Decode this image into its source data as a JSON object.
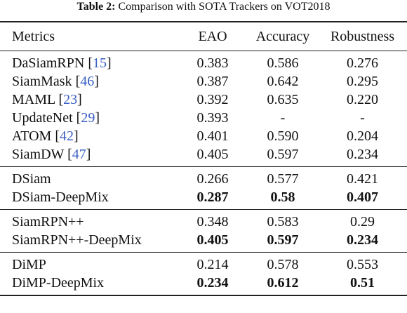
{
  "caption": {
    "label": "Table 2:",
    "text": " Comparison with SOTA Trackers on VOT2018"
  },
  "headers": [
    "Metrics",
    "EAO",
    "Accuracy",
    "Robustness"
  ],
  "groups": [
    [
      {
        "name": "DaSiamRPN",
        "ref": "15",
        "eao": "0.383",
        "acc": "0.586",
        "rob": "0.276",
        "bold": false
      },
      {
        "name": "SiamMask",
        "ref": "46",
        "eao": "0.387",
        "acc": "0.642",
        "rob": "0.295",
        "bold": false
      },
      {
        "name": "MAML",
        "ref": "23",
        "eao": "0.392",
        "acc": "0.635",
        "rob": "0.220",
        "bold": false
      },
      {
        "name": "UpdateNet",
        "ref": "29",
        "eao": "0.393",
        "acc": "-",
        "rob": "-",
        "bold": false
      },
      {
        "name": "ATOM",
        "ref": "42",
        "eao": "0.401",
        "acc": "0.590",
        "rob": "0.204",
        "bold": false
      },
      {
        "name": "SiamDW",
        "ref": "47",
        "eao": "0.405",
        "acc": "0.597",
        "rob": "0.234",
        "bold": false
      }
    ],
    [
      {
        "name": "DSiam",
        "ref": "",
        "eao": "0.266",
        "acc": "0.577",
        "rob": "0.421",
        "bold": false
      },
      {
        "name": "DSiam-DeepMix",
        "ref": "",
        "eao": "0.287",
        "acc": "0.58",
        "rob": "0.407",
        "bold": true
      }
    ],
    [
      {
        "name": "SiamRPN++",
        "ref": "",
        "eao": "0.348",
        "acc": "0.583",
        "rob": "0.29",
        "bold": false
      },
      {
        "name": "SiamRPN++-DeepMix",
        "ref": "",
        "eao": "0.405",
        "acc": "0.597",
        "rob": "0.234",
        "bold": true
      }
    ],
    [
      {
        "name": "DiMP",
        "ref": "",
        "eao": "0.214",
        "acc": "0.578",
        "rob": "0.553",
        "bold": false
      },
      {
        "name": "DiMP-DeepMix",
        "ref": "",
        "eao": "0.234",
        "acc": "0.612",
        "rob": "0.51",
        "bold": true
      }
    ]
  ]
}
